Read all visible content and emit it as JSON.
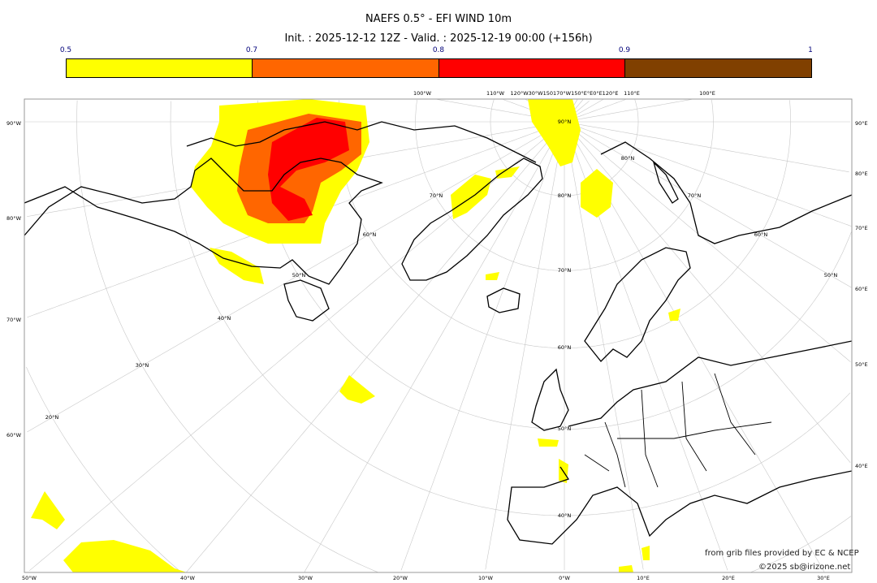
{
  "header": {
    "title": "NAEFS 0.5° - EFI WIND 10m",
    "subtitle": "Init. : 2025-12-12 12Z - Valid. : 2025-12-19 00:00 (+156h)"
  },
  "colorbar": {
    "ticks": [
      "0.5",
      "0.7",
      "0.8",
      "0.9",
      "1"
    ],
    "bins": [
      {
        "from": 0.5,
        "to": 0.7,
        "color": "#ffff00"
      },
      {
        "from": 0.7,
        "to": 0.8,
        "color": "#ff6600"
      },
      {
        "from": 0.8,
        "to": 0.9,
        "color": "#ff0000"
      },
      {
        "from": 0.9,
        "to": 1.0,
        "color": "#804000"
      }
    ]
  },
  "map": {
    "projection": "north polar stereographic",
    "left_labels": [
      "90°W",
      "80°W",
      "70°W",
      "60°W"
    ],
    "bottom_labels": [
      "50°W",
      "40°W",
      "30°W",
      "20°W",
      "10°W",
      "0°W",
      "10°E",
      "20°E",
      "30°E"
    ],
    "right_labels": [
      "90°E",
      "80°E",
      "70°E",
      "60°E",
      "50°E",
      "40°E"
    ],
    "top_labels": [
      "100°W",
      "110°W",
      "120°W30°W150170°W150°E°E0°E120°E",
      "110°E",
      "100°E"
    ],
    "lat_labels": [
      "90°N",
      "80°N",
      "70°N",
      "60°N",
      "50°N",
      "40°N",
      "80°N",
      "70°N",
      "70°N",
      "60°N",
      "60°N",
      "50°N",
      "50°N",
      "40°N",
      "30°N",
      "20°N"
    ]
  },
  "footer": {
    "source": "from grib files provided by EC & NCEP",
    "copyright": "©2025 sb@irizone.net"
  }
}
